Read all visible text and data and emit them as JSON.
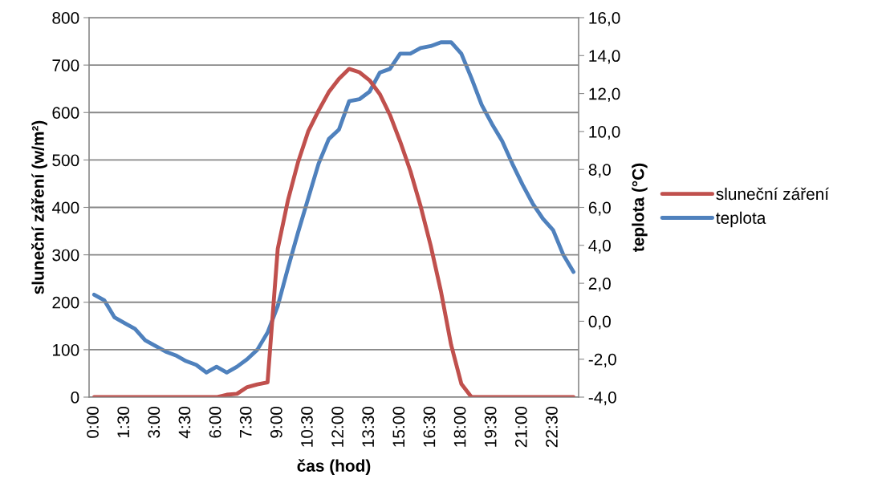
{
  "chart_data": {
    "type": "line",
    "xlabel": "čas (hod)",
    "ylabel": "sluneční záření (w/m²)",
    "y2label": "teplota (°C)",
    "categories": [
      "0:00",
      null,
      null,
      "1:30",
      null,
      null,
      "3:00",
      null,
      null,
      "4:30",
      null,
      null,
      "6:00",
      null,
      null,
      "7:30",
      null,
      null,
      "9:00",
      null,
      null,
      "10:30",
      null,
      null,
      "12:00",
      null,
      null,
      "13:30",
      null,
      null,
      "15:00",
      null,
      null,
      "16:30",
      null,
      null,
      "18:00",
      null,
      null,
      "19:30",
      null,
      null,
      "21:00",
      null,
      null,
      "22:30",
      null,
      null
    ],
    "series": [
      {
        "name": "sluneční záření",
        "color": "#c0504d",
        "values": [
          0,
          0,
          0,
          0,
          0,
          0,
          0,
          0,
          0,
          0,
          0,
          0,
          0,
          5,
          7,
          21,
          27,
          31,
          313,
          415,
          496,
          561,
          604,
          643,
          671,
          692,
          685,
          668,
          639,
          595,
          539,
          477,
          403,
          319,
          223,
          110,
          28,
          0,
          0,
          0,
          0,
          0,
          0,
          0,
          0,
          0,
          0,
          0
        ]
      },
      {
        "name": "teplota",
        "color": "#4f81bd",
        "axis": "y2",
        "values": [
          1.4,
          1.1,
          0.2,
          -0.1,
          -0.4,
          -1.0,
          -1.3,
          -1.6,
          -1.8,
          -2.1,
          -2.3,
          -2.7,
          -2.4,
          -2.7,
          -2.4,
          -2.0,
          -1.5,
          -0.6,
          0.8,
          2.8,
          4.7,
          6.5,
          8.3,
          9.6,
          10.1,
          11.6,
          11.7,
          12.1,
          13.1,
          13.3,
          14.1,
          14.1,
          14.4,
          14.5,
          14.7,
          14.7,
          14.1,
          12.8,
          11.4,
          10.4,
          9.5,
          8.3,
          7.2,
          6.2,
          5.4,
          4.8,
          3.5,
          2.6
        ]
      }
    ],
    "ylim": [
      0,
      800
    ],
    "yticks": [
      0,
      100,
      200,
      300,
      400,
      500,
      600,
      700,
      800
    ],
    "y2lim": [
      -4,
      16
    ],
    "y2ticks": [
      {
        "value": -4,
        "label": "-4,0"
      },
      {
        "value": -2,
        "label": "-2,0"
      },
      {
        "value": 0,
        "label": "0,0"
      },
      {
        "value": 2,
        "label": "2,0"
      },
      {
        "value": 4,
        "label": "4,0"
      },
      {
        "value": 6,
        "label": "6,0"
      },
      {
        "value": 8,
        "label": "8,0"
      },
      {
        "value": 10,
        "label": "10,0"
      },
      {
        "value": 12,
        "label": "12,0"
      },
      {
        "value": 14,
        "label": "14,0"
      },
      {
        "value": 16,
        "label": "16,0"
      }
    ],
    "grid": "y",
    "legend": "right",
    "marker": "none",
    "line_style": "solid"
  }
}
